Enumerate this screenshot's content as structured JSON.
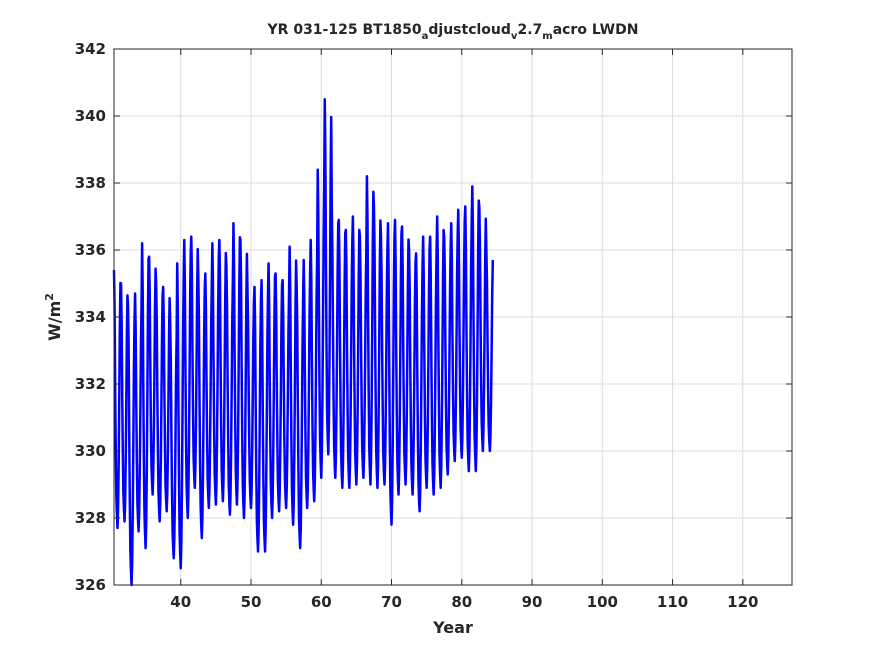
{
  "chart_data": {
    "type": "line",
    "title_parts": {
      "t1": "YR 031-125 BT1850",
      "s1": "a",
      "t2": "djustcloud",
      "s2": "v",
      "t3": "2.7",
      "s3": "m",
      "t4": "acro LWDN"
    },
    "xlabel": "Year",
    "ylabel_parts": {
      "base": "W/m",
      "sup": "2"
    },
    "xlim": [
      30.5,
      127
    ],
    "ylim": [
      326,
      342
    ],
    "xticks": [
      "40",
      "50",
      "60",
      "70",
      "80",
      "90",
      "100",
      "110",
      "120"
    ],
    "yticks": [
      "326",
      "328",
      "330",
      "332",
      "334",
      "336",
      "338",
      "340",
      "342"
    ],
    "grid": true,
    "line_color": "#0000ff",
    "series": [
      {
        "x_start": 30.5,
        "step": 0.08333,
        "annual_max": [
          335.4,
          335.0,
          334.3,
          334.7,
          336.2,
          335.8,
          335.0,
          334.9,
          333.8,
          335.6,
          336.3,
          336.4,
          335.2,
          335.3,
          336.2,
          336.3,
          335.5,
          336.8,
          336.3,
          334.8,
          334.9,
          335.1,
          335.6,
          335.3,
          335.1,
          336.1,
          334.9,
          335.7,
          336.3,
          338.4,
          340.5,
          337.2,
          336.9,
          336.6,
          337.0,
          336.4,
          338.2,
          337.3,
          336.4,
          336.8,
          336.9,
          336.7,
          336.0,
          335.9,
          336.4,
          336.4,
          337.0,
          336.4,
          336.8,
          337.2,
          337.3,
          337.9,
          337.3,
          336.0
        ],
        "annual_min": [
          327.7,
          327.9,
          326.0,
          327.6,
          327.1,
          328.7,
          327.9,
          328.2,
          326.8,
          326.5,
          328.0,
          328.9,
          327.4,
          328.3,
          328.4,
          328.5,
          328.1,
          328.4,
          328.0,
          328.3,
          327.0,
          327.0,
          328.0,
          328.2,
          328.3,
          327.8,
          327.1,
          328.3,
          328.5,
          329.2,
          329.9,
          329.2,
          328.9,
          328.9,
          329.0,
          329.2,
          329.0,
          328.9,
          329.0,
          327.8,
          328.7,
          329.0,
          328.7,
          328.2,
          328.9,
          328.7,
          328.9,
          329.3,
          329.7,
          329.8,
          329.4,
          329.4,
          330.0,
          330.0
        ]
      }
    ]
  }
}
